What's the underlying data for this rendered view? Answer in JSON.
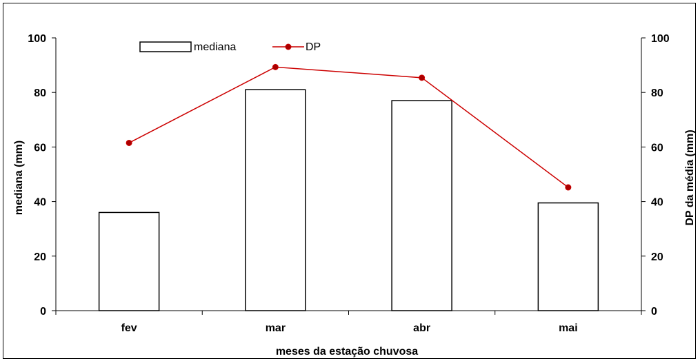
{
  "chart_data": {
    "type": "bar",
    "categories": [
      "fev",
      "mar",
      "abr",
      "mai"
    ],
    "series": [
      {
        "name": "mediana",
        "type": "bar",
        "axis": "left",
        "values": [
          36,
          81,
          77,
          39.5
        ],
        "fill": "#ffffff",
        "stroke": "#000000"
      },
      {
        "name": "DP",
        "type": "line",
        "axis": "right",
        "values": [
          61.5,
          89.3,
          85.4,
          45.2
        ],
        "color": "#cc0000",
        "marker_color": "#aa0000"
      }
    ],
    "xlabel": "meses da estação chuvosa",
    "ylabel": "mediana (mm)",
    "y2label": "DP da média (mm)",
    "ylim": [
      0,
      100
    ],
    "y2lim": [
      0,
      100
    ],
    "yticks": [
      0,
      20,
      40,
      60,
      80,
      100
    ],
    "y2ticks": [
      0,
      20,
      40,
      60,
      80,
      100
    ],
    "legend_position": "top-left",
    "grid": false
  }
}
